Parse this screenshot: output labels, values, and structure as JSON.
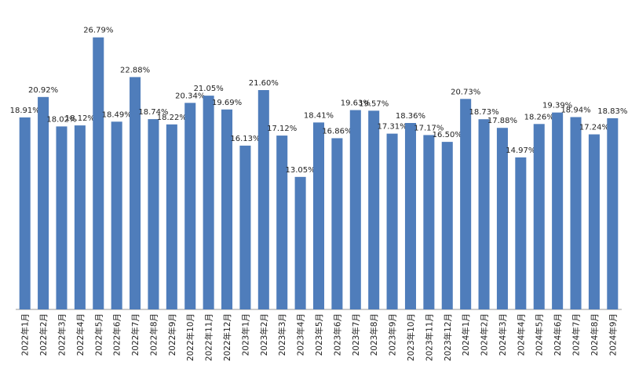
{
  "chart_data": {
    "type": "bar",
    "color": "#4f7dbb",
    "categories": [
      "2022年1月",
      "2022年2月",
      "2022年3月",
      "2022年4月",
      "2022年5月",
      "2022年6月",
      "2022年7月",
      "2022年8月",
      "2022年9月",
      "2022年10月",
      "2022年11月",
      "2022年12月",
      "2023年1月",
      "2023年2月",
      "2023年3月",
      "2023年4月",
      "2023年5月",
      "2023年6月",
      "2023年7月",
      "2023年8月",
      "2023年9月",
      "2023年10月",
      "2023年11月",
      "2023年12月",
      "2024年1月",
      "2024年2月",
      "2024年3月",
      "2024年4月",
      "2024年5月",
      "2024年6月",
      "2024年7月",
      "2024年8月",
      "2024年9月"
    ],
    "values": [
      18.91,
      20.92,
      18.02,
      18.12,
      26.79,
      18.49,
      22.88,
      18.74,
      18.22,
      20.34,
      21.05,
      19.69,
      16.13,
      21.6,
      17.12,
      13.05,
      18.41,
      16.86,
      19.63,
      19.57,
      17.31,
      18.36,
      17.17,
      16.5,
      20.73,
      18.73,
      17.88,
      14.97,
      18.26,
      19.39,
      18.94,
      17.24,
      18.83
    ],
    "value_labels": [
      "18.91%",
      "20.92%",
      "18.02%",
      "18.12%",
      "26.79%",
      "18.49%",
      "22.88%",
      "18.74%",
      "18.22%",
      "20.34%",
      "21.05%",
      "19.69%",
      "16.13%",
      "21.60%",
      "17.12%",
      "13.05%",
      "18.41%",
      "16.86%",
      "19.63%",
      "19.57%",
      "17.31%",
      "18.36%",
      "17.17%",
      "16.50%",
      "20.73%",
      "18.73%",
      "17.88%",
      "14.97%",
      "18.26%",
      "19.39%",
      "18.94%",
      "17.24%",
      "18.83%"
    ],
    "ylim": [
      0,
      27
    ]
  }
}
